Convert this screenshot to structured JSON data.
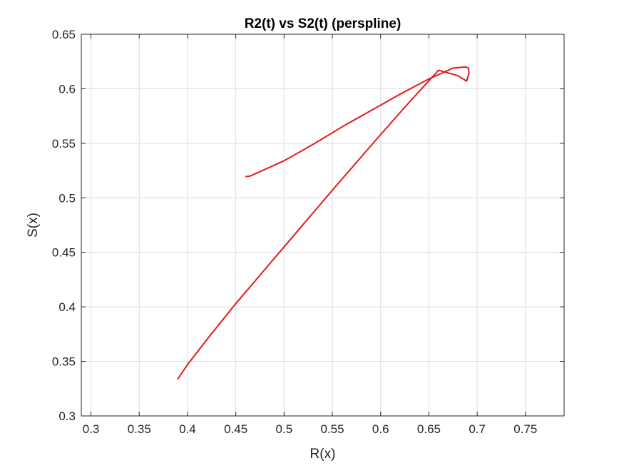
{
  "chart_data": {
    "type": "line",
    "title": "R2(t) vs S2(t) (perspline)",
    "xlabel": "R(x)",
    "ylabel": "S(x)",
    "xlim": [
      0.29,
      0.79
    ],
    "ylim": [
      0.3,
      0.65
    ],
    "xticks": [
      0.3,
      0.35,
      0.4,
      0.45,
      0.5,
      0.55,
      0.6,
      0.65,
      0.7,
      0.75
    ],
    "xtick_labels": [
      "0.3",
      "0.35",
      "0.4",
      "0.45",
      "0.5",
      "0.55",
      "0.6",
      "0.65",
      "0.7",
      "0.75"
    ],
    "yticks": [
      0.3,
      0.35,
      0.4,
      0.45,
      0.5,
      0.55,
      0.6,
      0.65
    ],
    "ytick_labels": [
      "0.3",
      "0.35",
      "0.4",
      "0.45",
      "0.5",
      "0.55",
      "0.6",
      "0.65"
    ],
    "grid": true,
    "series": [
      {
        "color": "#e31a1c",
        "x": [
          0.39,
          0.4,
          0.42,
          0.45,
          0.5,
          0.55,
          0.6,
          0.63,
          0.66,
          0.68,
          0.689,
          0.6915,
          0.691,
          0.688,
          0.675,
          0.65,
          0.62,
          0.59,
          0.56,
          0.53,
          0.5,
          0.48,
          0.47,
          0.465,
          0.4605
        ],
        "y": [
          0.334,
          0.347,
          0.37,
          0.403,
          0.455,
          0.507,
          0.558,
          0.588,
          0.617,
          0.612,
          0.607,
          0.614,
          0.619,
          0.62,
          0.619,
          0.609,
          0.595,
          0.58,
          0.565,
          0.549,
          0.534,
          0.526,
          0.522,
          0.52,
          0.5195
        ]
      }
    ]
  }
}
